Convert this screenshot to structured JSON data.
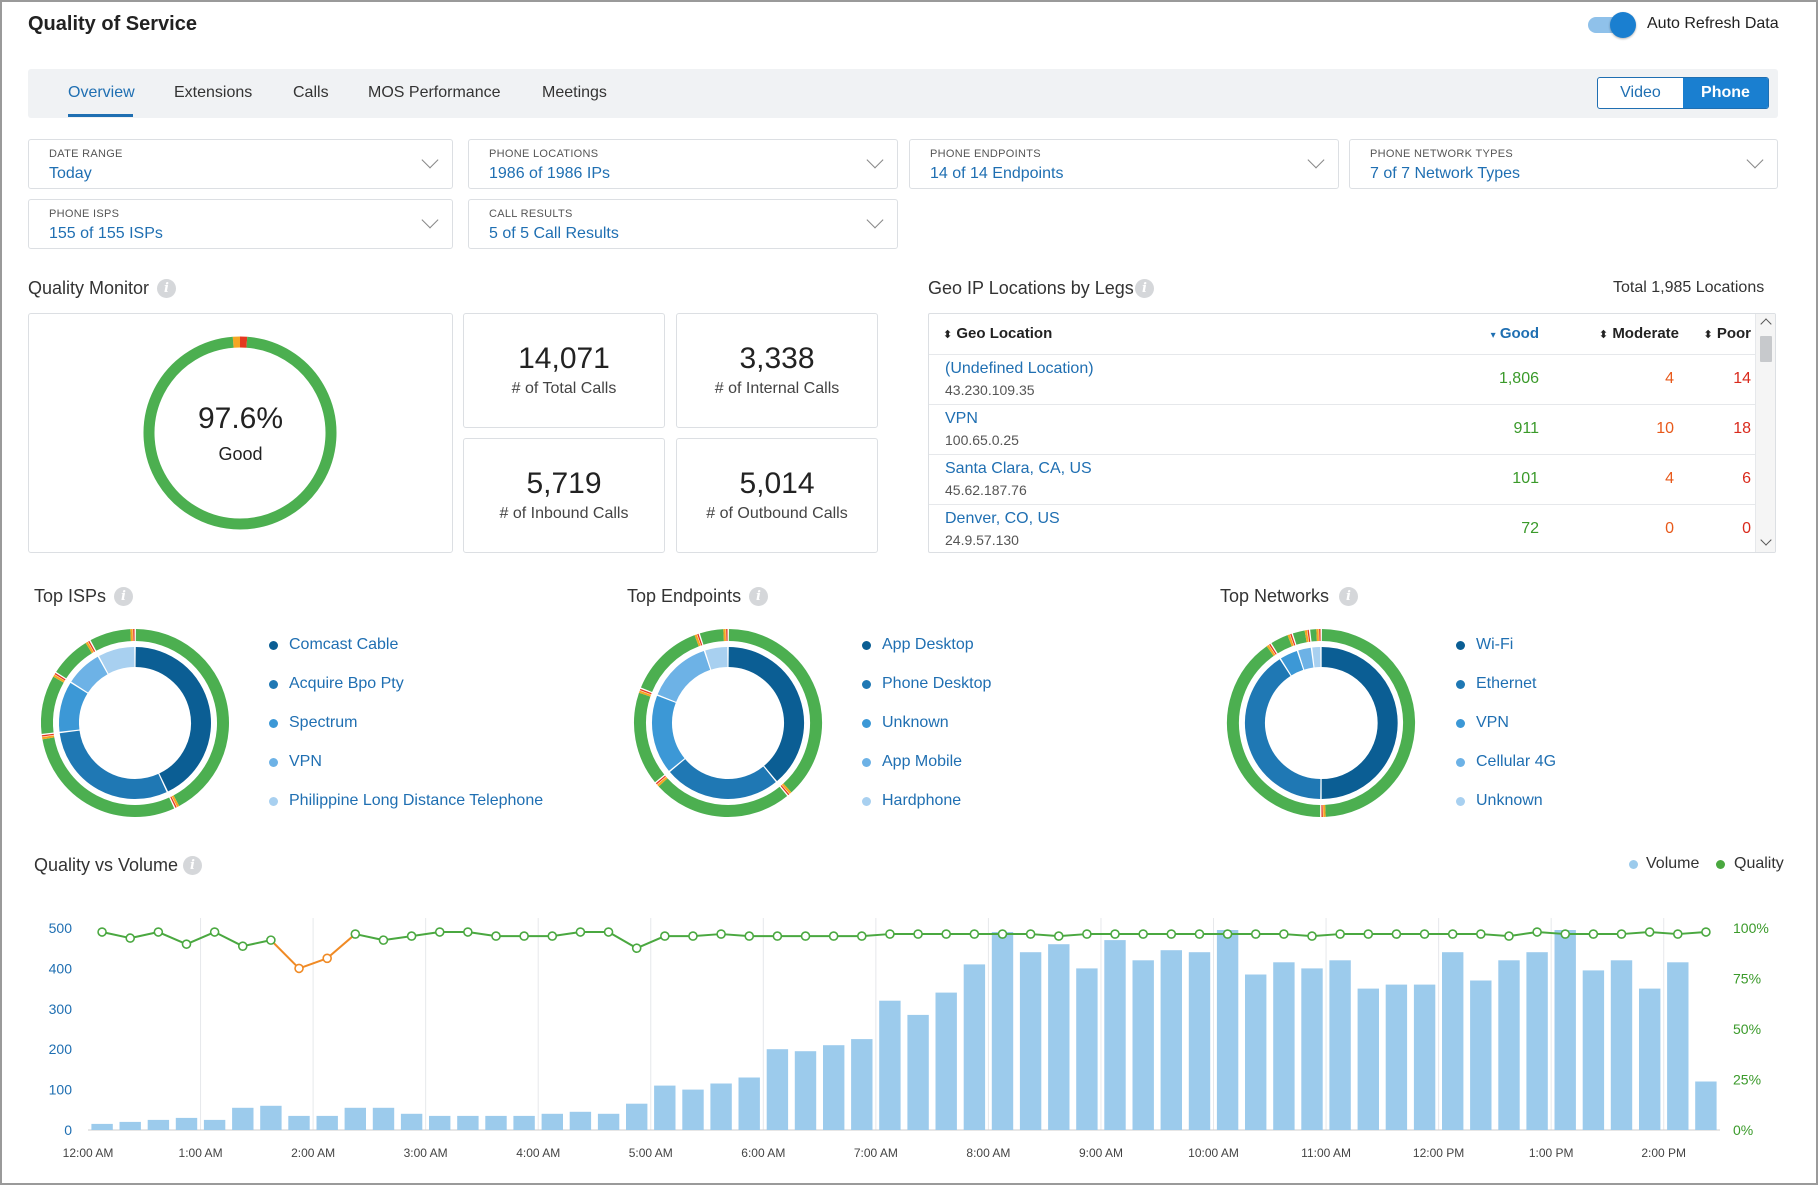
{
  "app": {
    "title": "Quality of Service",
    "auto_refresh_label": "Auto Refresh Data"
  },
  "tabs": [
    "Overview",
    "Extensions",
    "Calls",
    "MOS Performance",
    "Meetings"
  ],
  "segment": {
    "video": "Video",
    "phone": "Phone"
  },
  "filters": [
    {
      "label": "DATE RANGE",
      "value": "Today"
    },
    {
      "label": "PHONE LOCATIONS",
      "value": "1986 of 1986 IPs"
    },
    {
      "label": "PHONE ENDPOINTS",
      "value": "14 of 14 Endpoints"
    },
    {
      "label": "PHONE NETWORK TYPES",
      "value": "7 of 7 Network Types"
    },
    {
      "label": "PHONE ISPS",
      "value": "155 of 155 ISPs"
    },
    {
      "label": "CALL RESULTS",
      "value": "5 of 5 Call Results"
    }
  ],
  "quality_monitor": {
    "title": "Quality Monitor",
    "percent": "97.6%",
    "status": "Good",
    "good_fraction": 0.976,
    "moderate_fraction": 0.012,
    "poor_fraction": 0.012,
    "stats": [
      {
        "value": "14,071",
        "label": "# of Total Calls"
      },
      {
        "value": "3,338",
        "label": "# of Internal Calls"
      },
      {
        "value": "5,719",
        "label": "# of Inbound Calls"
      },
      {
        "value": "5,014",
        "label": "# of Outbound Calls"
      }
    ]
  },
  "geo": {
    "title": "Geo IP Locations by Legs",
    "total": "Total 1,985 Locations",
    "headers": [
      "Geo Location",
      "Good",
      "Moderate",
      "Poor"
    ],
    "rows": [
      {
        "location": "(Undefined Location)",
        "ip": "43.230.109.35",
        "good": "1,806",
        "moderate": "4",
        "poor": "14"
      },
      {
        "location": "VPN",
        "ip": "100.65.0.25",
        "good": "911",
        "moderate": "10",
        "poor": "18"
      },
      {
        "location": "Santa Clara, CA, US",
        "ip": "45.62.187.76",
        "good": "101",
        "moderate": "4",
        "poor": "6"
      },
      {
        "location": "Denver, CO, US",
        "ip": "24.9.57.130",
        "good": "72",
        "moderate": "0",
        "poor": "0"
      }
    ]
  },
  "top_isps": {
    "title": "Top ISPs",
    "items": [
      "Comcast Cable",
      "Acquire Bpo Pty",
      "Spectrum",
      "VPN",
      "Philippine Long Distance Telephone"
    ],
    "shares": [
      0.43,
      0.3,
      0.11,
      0.08,
      0.08
    ]
  },
  "top_endpoints": {
    "title": "Top Endpoints",
    "items": [
      "App Desktop",
      "Phone Desktop",
      "Unknown",
      "App Mobile",
      "Hardphone"
    ],
    "shares": [
      0.39,
      0.25,
      0.17,
      0.14,
      0.05
    ]
  },
  "top_networks": {
    "title": "Top Networks",
    "items": [
      "Wi-Fi",
      "Ethernet",
      "VPN",
      "Cellular 4G",
      "Unknown"
    ],
    "shares": [
      0.5,
      0.41,
      0.04,
      0.03,
      0.02
    ]
  },
  "colors": {
    "blue1": "#0b5e94",
    "blue2": "#1f78b4",
    "blue3": "#3c98d6",
    "blue4": "#6db2e6",
    "blue5": "#a8d0f0",
    "good": "#4caf50",
    "moderate": "#f5a623",
    "poor": "#e5391f",
    "bar": "#9ccbec",
    "line": "#4aa840",
    "line_dip": "#f08a24"
  },
  "chart_data": {
    "type": "bar",
    "title": "Quality vs Volume",
    "legend": [
      "Volume",
      "Quality"
    ],
    "legend_position": "top-right",
    "x_ticks": [
      "12:00 AM",
      "1:00 AM",
      "2:00 AM",
      "3:00 AM",
      "4:00 AM",
      "5:00 AM",
      "6:00 AM",
      "7:00 AM",
      "8:00 AM",
      "9:00 AM",
      "10:00 AM",
      "11:00 AM",
      "12:00 PM",
      "1:00 PM",
      "2:00 PM"
    ],
    "y_left_ticks": [
      "0",
      "100",
      "200",
      "300",
      "400",
      "500"
    ],
    "y_left_range": [
      0,
      500
    ],
    "y_right_ticks": [
      "0%",
      "25%",
      "50%",
      "75%",
      "100%"
    ],
    "y_right_range": [
      0,
      100
    ],
    "interval_minutes": 15,
    "series": [
      {
        "name": "Volume",
        "values": [
          15,
          20,
          25,
          30,
          25,
          55,
          60,
          35,
          35,
          55,
          55,
          40,
          35,
          35,
          35,
          35,
          40,
          45,
          40,
          65,
          110,
          100,
          115,
          130,
          200,
          195,
          210,
          225,
          320,
          285,
          340,
          410,
          490,
          440,
          460,
          400,
          470,
          420,
          445,
          440,
          495,
          385,
          415,
          400,
          420,
          350,
          360,
          360,
          440,
          370,
          420,
          440,
          495,
          395,
          420,
          350,
          415,
          120
        ]
      },
      {
        "name": "Quality",
        "values": [
          98,
          95,
          98,
          92,
          98,
          91,
          94,
          80,
          85,
          97,
          94,
          96,
          98,
          98,
          96,
          96,
          96,
          98,
          98,
          90,
          96,
          96,
          97,
          96,
          96,
          96,
          96,
          96,
          97,
          97,
          97,
          97,
          97,
          97,
          96,
          97,
          97,
          97,
          97,
          97,
          97,
          97,
          97,
          96,
          97,
          97,
          97,
          97,
          97,
          97,
          96,
          98,
          97,
          97,
          97,
          98,
          97,
          98
        ]
      }
    ]
  }
}
